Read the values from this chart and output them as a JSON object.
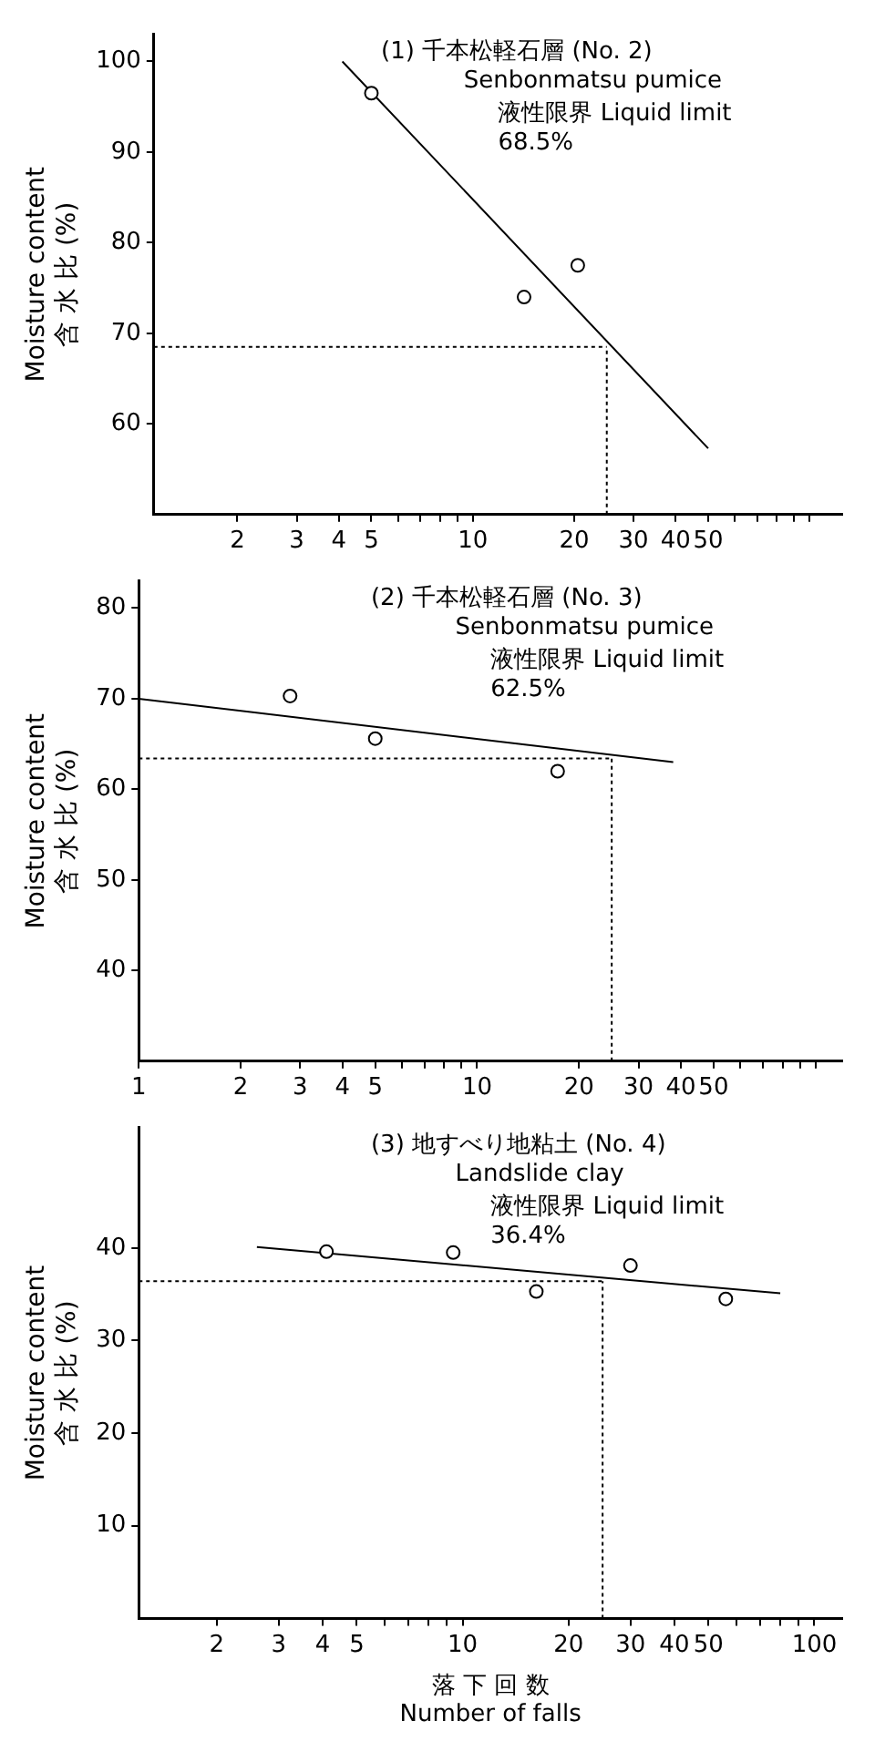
{
  "chart_data": [
    {
      "type": "scatter",
      "title": "(1) 千本松軽石層 (No. 2)",
      "subtitle": "Senbonmatsu pumice",
      "ylabel": "Moisture content\n含 水 比 (%)",
      "annotations": [
        "液性限界 Liquid limit",
        "68.5%"
      ],
      "log": "x",
      "grid": false,
      "legend": false,
      "marker": "circle",
      "xlim": [
        1.13,
        125
      ],
      "ylim": [
        50,
        103
      ],
      "xticks": [
        2,
        3,
        4,
        5,
        {
          "value": 6,
          "label": null
        },
        {
          "value": 7,
          "label": null
        },
        {
          "value": 8,
          "label": null
        },
        {
          "value": 9,
          "label": null
        },
        10,
        20,
        30,
        40,
        50,
        {
          "value": 60,
          "label": null
        },
        {
          "value": 70,
          "label": null
        },
        {
          "value": 80,
          "label": null
        },
        {
          "value": 90,
          "label": null
        },
        {
          "value": 100,
          "label": null
        }
      ],
      "yticks": [
        60,
        70,
        80,
        90,
        100
      ],
      "ref_lines": [
        {
          "axis": "y",
          "value": 68.5,
          "line_style": "dotted"
        },
        {
          "axis": "x",
          "value": 25,
          "line_style": "dotted"
        }
      ],
      "series": [
        {
          "color": "#000000",
          "x": [
            5,
            14.2,
            20.5
          ],
          "values": [
            96.5,
            74,
            77.5
          ]
        },
        {
          "type": "line",
          "color": "#000000",
          "marker": "none",
          "x": [
            4.1,
            50
          ],
          "values": [
            100,
            57.3
          ]
        }
      ]
    },
    {
      "type": "scatter",
      "title": "(2) 千本松軽石層 (No. 3)",
      "subtitle": "Senbonmatsu pumice",
      "ylabel": "Moisture content\n含 水 比 (%)",
      "annotations": [
        "液性限界 Liquid limit",
        "62.5%"
      ],
      "log": "x",
      "grid": false,
      "legend": false,
      "marker": "circle",
      "xlim": [
        1,
        120
      ],
      "ylim": [
        30,
        83
      ],
      "xticks": [
        1,
        2,
        3,
        4,
        5,
        {
          "value": 6,
          "label": null
        },
        {
          "value": 7,
          "label": null
        },
        {
          "value": 8,
          "label": null
        },
        {
          "value": 9,
          "label": null
        },
        10,
        20,
        30,
        40,
        50,
        {
          "value": 60,
          "label": null
        },
        {
          "value": 70,
          "label": null
        },
        {
          "value": 80,
          "label": null
        },
        {
          "value": 90,
          "label": null
        },
        {
          "value": 100,
          "label": null
        }
      ],
      "yticks": [
        40,
        50,
        60,
        70,
        80
      ],
      "ref_lines": [
        {
          "axis": "y",
          "value": 63.4,
          "line_style": "dotted"
        },
        {
          "axis": "x",
          "value": 25,
          "line_style": "dotted"
        }
      ],
      "series": [
        {
          "color": "#000000",
          "x": [
            2.8,
            5,
            17.3
          ],
          "values": [
            70.3,
            65.6,
            62
          ]
        },
        {
          "type": "line",
          "color": "#000000",
          "marker": "none",
          "x": [
            1,
            38
          ],
          "values": [
            70,
            63
          ]
        }
      ]
    },
    {
      "type": "scatter",
      "title": "(3) 地すべり地粘土 (No. 4)",
      "subtitle": "Landslide clay",
      "xlabel": "落 下 回 数\nNumber of falls",
      "ylabel": "Moisture content\n含 水 比 (%)",
      "annotations": [
        "液性限界 Liquid limit",
        "36.4%"
      ],
      "log": "x",
      "grid": false,
      "legend": false,
      "marker": "circle",
      "xlim": [
        1.2,
        120
      ],
      "ylim": [
        0,
        53
      ],
      "xticks": [
        2,
        3,
        4,
        5,
        {
          "value": 6,
          "label": null
        },
        {
          "value": 7,
          "label": null
        },
        {
          "value": 8,
          "label": null
        },
        {
          "value": 9,
          "label": null
        },
        10,
        20,
        30,
        40,
        50,
        {
          "value": 60,
          "label": null
        },
        {
          "value": 70,
          "label": null
        },
        {
          "value": 80,
          "label": null
        },
        {
          "value": 90,
          "label": null
        },
        100
      ],
      "yticks": [
        10,
        20,
        30,
        40
      ],
      "ref_lines": [
        {
          "axis": "y",
          "value": 36.4,
          "line_style": "dotted"
        },
        {
          "axis": "x",
          "value": 25,
          "line_style": "dotted"
        }
      ],
      "series": [
        {
          "color": "#000000",
          "x": [
            4.1,
            9.4,
            16.2,
            30,
            56
          ],
          "values": [
            39.6,
            39.5,
            35.3,
            38.1,
            34.5
          ]
        },
        {
          "type": "line",
          "color": "#000000",
          "marker": "none",
          "x": [
            2.6,
            80
          ],
          "values": [
            40.1,
            35.1
          ]
        }
      ]
    }
  ]
}
